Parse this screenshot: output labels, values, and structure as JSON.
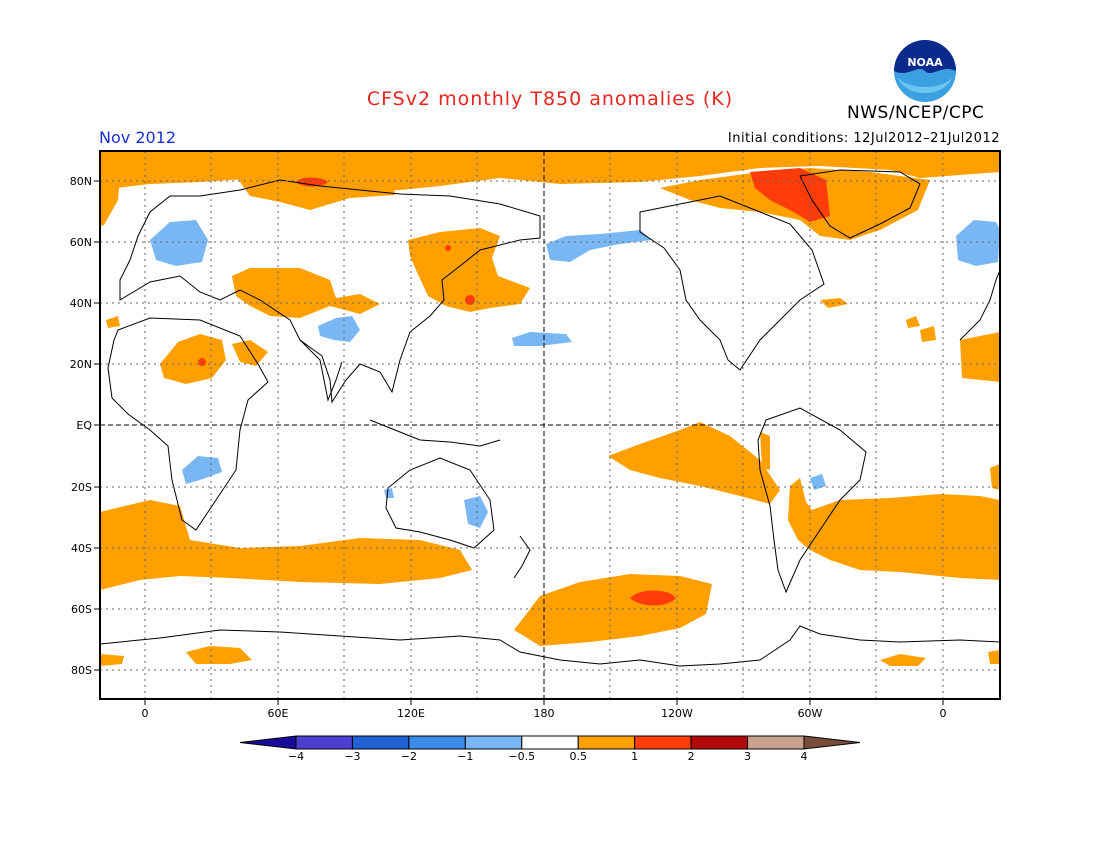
{
  "header": {
    "title": "CFSv2 monthly T850 anomalies (K)",
    "valid_month": "Nov 2012",
    "initial_conditions": "Initial conditions: 12Jul2012–21Jul2012",
    "agency": "NWS/NCEP/CPC",
    "logo_text": "NOAA",
    "title_color": "#e8251e",
    "date_color": "#1a2fd6"
  },
  "map": {
    "projection": "cylindrical, centered 180",
    "lon_ticks": [
      "0",
      "60E",
      "120E",
      "180",
      "120W",
      "60W",
      "0"
    ],
    "lat_ticks": [
      "80N",
      "60N",
      "40N",
      "20N",
      "EQ",
      "20S",
      "40S",
      "60S",
      "80S"
    ]
  },
  "colorbar": {
    "labels": [
      "−4",
      "−3",
      "−2",
      "−1",
      "−0.5",
      "0.5",
      "1",
      "2",
      "3",
      "4"
    ],
    "colors": [
      "#1a0a9c",
      "#4a3fcf",
      "#1f62d6",
      "#3b8ae8",
      "#79b6f4",
      "#ffffff",
      "#ffa000",
      "#ff3c0a",
      "#b00a0a",
      "#c8a28e",
      "#7a4d3a"
    ]
  }
}
